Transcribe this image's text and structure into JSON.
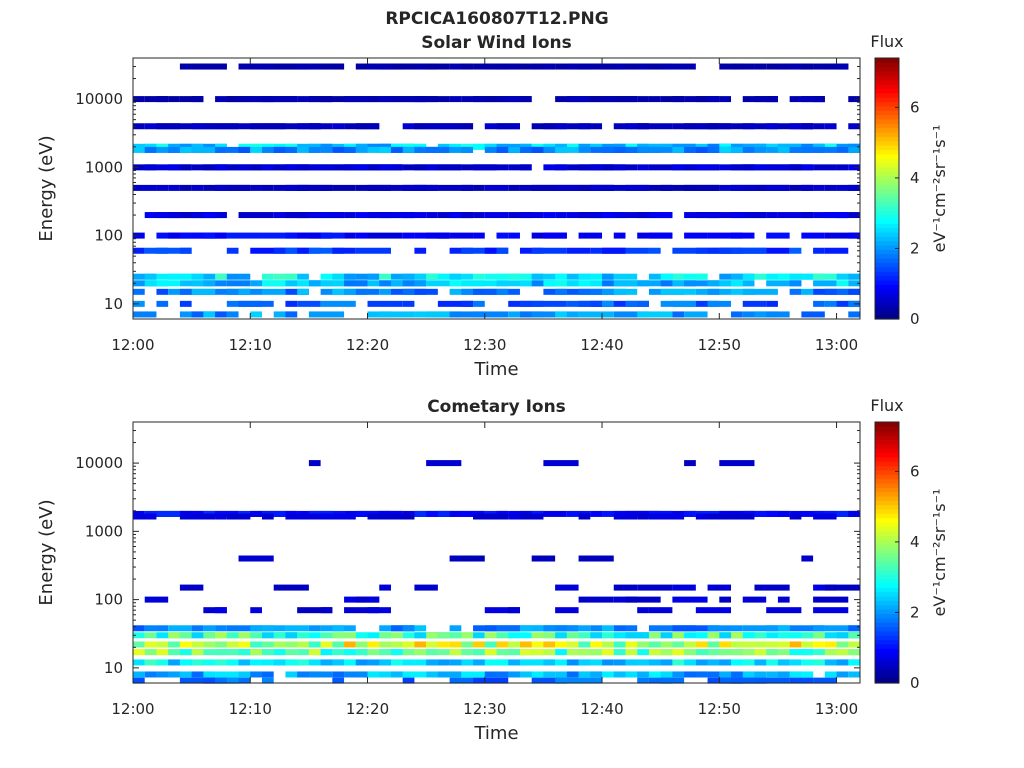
{
  "figure_title": "RPCICA160807T12.PNG",
  "colorbar": {
    "title": "Flux",
    "label": "eV⁻¹cm⁻²sr⁻¹s⁻¹",
    "ticks": [
      "0",
      "2",
      "4",
      "6"
    ],
    "range": [
      0,
      7.4
    ],
    "colormap": "jet"
  },
  "chart_data": [
    {
      "type": "heatmap",
      "title": "Solar Wind Ions",
      "xlabel": "Time",
      "ylabel": "Energy (eV)",
      "x_ticks": [
        "12:00",
        "12:10",
        "12:20",
        "12:30",
        "12:40",
        "12:50",
        "13:00"
      ],
      "x_range_minutes": [
        0,
        62
      ],
      "y_ticks": [
        "10",
        "100",
        "1000",
        "10000"
      ],
      "y_scale": "log",
      "y_range": [
        6,
        40000
      ],
      "bands": [
        {
          "energy": 2000,
          "flux": 2.4,
          "fill": 0.95
        },
        {
          "energy": 1800,
          "flux": 2.0,
          "fill": 0.9
        },
        {
          "energy": 25,
          "flux": 2.6,
          "fill": 0.9
        },
        {
          "energy": 20,
          "flux": 2.3,
          "fill": 0.85
        },
        {
          "energy": 15,
          "flux": 1.9,
          "fill": 0.8
        },
        {
          "energy": 10,
          "flux": 1.6,
          "fill": 0.6
        },
        {
          "energy": 7,
          "flux": 2.0,
          "fill": 0.5
        },
        {
          "energy": 60,
          "flux": 1.3,
          "fill": 0.6
        },
        {
          "energy": 100,
          "flux": 0.9,
          "fill": 0.6
        },
        {
          "energy": 200,
          "flux": 0.7,
          "fill": 0.8
        },
        {
          "energy": 500,
          "flux": 0.5,
          "fill": 0.9
        },
        {
          "energy": 1000,
          "flux": 0.6,
          "fill": 0.95
        },
        {
          "energy": 4000,
          "flux": 0.5,
          "fill": 0.9
        },
        {
          "energy": 10000,
          "flux": 0.35,
          "fill": 0.85
        },
        {
          "energy": 30000,
          "flux": 0.3,
          "fill": 0.8
        }
      ]
    },
    {
      "type": "heatmap",
      "title": "Cometary Ions",
      "xlabel": "Time",
      "ylabel": "Energy (eV)",
      "x_ticks": [
        "12:00",
        "12:10",
        "12:20",
        "12:30",
        "12:40",
        "12:50",
        "13:00"
      ],
      "x_range_minutes": [
        0,
        62
      ],
      "y_ticks": [
        "10",
        "100",
        "1000",
        "10000"
      ],
      "y_scale": "log",
      "y_range": [
        6,
        40000
      ],
      "bands": [
        {
          "energy": 30,
          "flux": 3.2,
          "fill": 1.0
        },
        {
          "energy": 22,
          "flux": 4.2,
          "fill": 1.0
        },
        {
          "energy": 17,
          "flux": 3.6,
          "fill": 1.0
        },
        {
          "energy": 12,
          "flux": 2.6,
          "fill": 1.0
        },
        {
          "energy": 8,
          "flux": 2.2,
          "fill": 0.9
        },
        {
          "energy": 6.5,
          "flux": 1.8,
          "fill": 0.3
        },
        {
          "energy": 38,
          "flux": 2.0,
          "fill": 0.8
        },
        {
          "energy": 1800,
          "flux": 1.0,
          "fill": 0.85
        },
        {
          "energy": 1650,
          "flux": 0.6,
          "fill": 0.5
        },
        {
          "energy": 150,
          "flux": 0.6,
          "fill": 0.35
        },
        {
          "energy": 100,
          "flux": 0.6,
          "fill": 0.3
        },
        {
          "energy": 70,
          "flux": 0.6,
          "fill": 0.25
        },
        {
          "energy": 400,
          "flux": 0.5,
          "fill": 0.15
        },
        {
          "energy": 10000,
          "flux": 0.5,
          "fill": 0.1
        }
      ]
    }
  ]
}
